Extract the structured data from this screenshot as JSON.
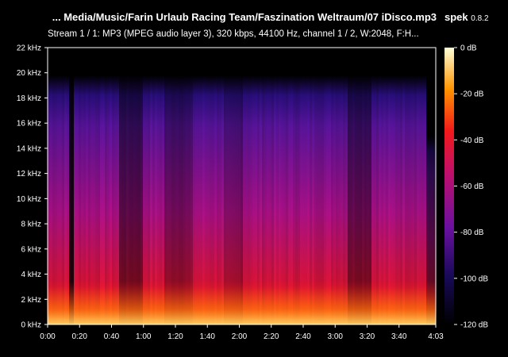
{
  "header": {
    "file_title": "... Media/Music/Farin Urlaub Racing Team/Faszination Weltraum/07 iDisco.mp3",
    "app_name": "spek",
    "app_version": "0.8.2",
    "stream_info": "Stream 1 / 1: MP3 (MPEG audio layer 3), 320 kbps, 44100 Hz, channel 1 / 2, W:2048, F:H..."
  },
  "spectrogram": {
    "freq_axis_labels": [
      "0 kHz",
      "2 kHz",
      "4 kHz",
      "6 kHz",
      "8 kHz",
      "10 kHz",
      "12 kHz",
      "14 kHz",
      "16 kHz",
      "18 kHz",
      "20 kHz",
      "22 kHz"
    ],
    "time_axis_labels": [
      "0:00",
      "0:20",
      "0:40",
      "1:00",
      "1:20",
      "1:40",
      "2:00",
      "2:20",
      "2:40",
      "3:00",
      "3:20",
      "3:40",
      "4:03"
    ],
    "colorbar_labels": [
      "0 dB",
      "-20 dB",
      "-40 dB",
      "-60 dB",
      "-80 dB",
      "-100 dB",
      "-120 dB"
    ],
    "colors": {
      "low": "#000000",
      "mid_low": "#20107a",
      "mid": "#9a0fa0",
      "mid_high": "#e0103a",
      "high": "#ff8a00",
      "peak": "#ffffc8"
    }
  }
}
